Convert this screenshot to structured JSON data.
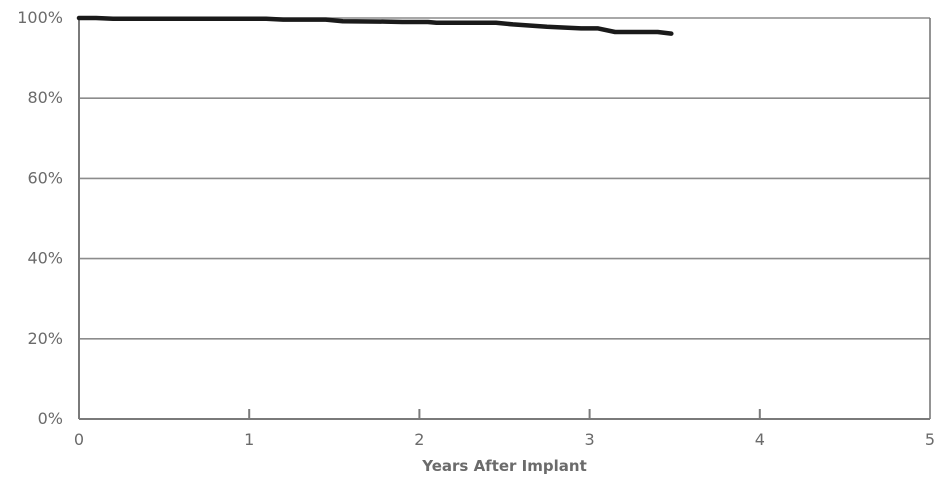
{
  "chart_data": {
    "type": "line",
    "title": "",
    "xlabel": "Years After Implant",
    "ylabel": "",
    "xlim": [
      0,
      5
    ],
    "ylim": [
      0,
      100
    ],
    "x_ticks": [
      {
        "value": 0,
        "label": "0"
      },
      {
        "value": 1,
        "label": "1"
      },
      {
        "value": 2,
        "label": "2"
      },
      {
        "value": 3,
        "label": "3"
      },
      {
        "value": 4,
        "label": "4"
      },
      {
        "value": 5,
        "label": "5"
      }
    ],
    "y_ticks": [
      {
        "value": 0,
        "label": "0%"
      },
      {
        "value": 20,
        "label": "20%"
      },
      {
        "value": 40,
        "label": "40%"
      },
      {
        "value": 60,
        "label": "60%"
      },
      {
        "value": 80,
        "label": "80%"
      },
      {
        "value": 100,
        "label": "100%"
      }
    ],
    "grid": true,
    "legend": "none",
    "colors": {
      "line": "#1a1a1a",
      "grid": "#8c8c8c",
      "axis": "#7a7a7a",
      "text": "#6b6b6b"
    },
    "series": [
      {
        "x": [
          0,
          0.1,
          0.2,
          0.6,
          1.1,
          1.2,
          1.45,
          1.55,
          1.8,
          1.9,
          2.05,
          2.1,
          2.45,
          2.55,
          2.75,
          2.95,
          3.05,
          3.15,
          3.4,
          3.48
        ],
        "y": [
          100,
          100,
          99.8,
          99.8,
          99.8,
          99.6,
          99.6,
          99.2,
          99.1,
          99.0,
          99.0,
          98.8,
          98.8,
          98.4,
          97.8,
          97.4,
          97.4,
          96.5,
          96.5,
          96.1
        ]
      }
    ]
  }
}
